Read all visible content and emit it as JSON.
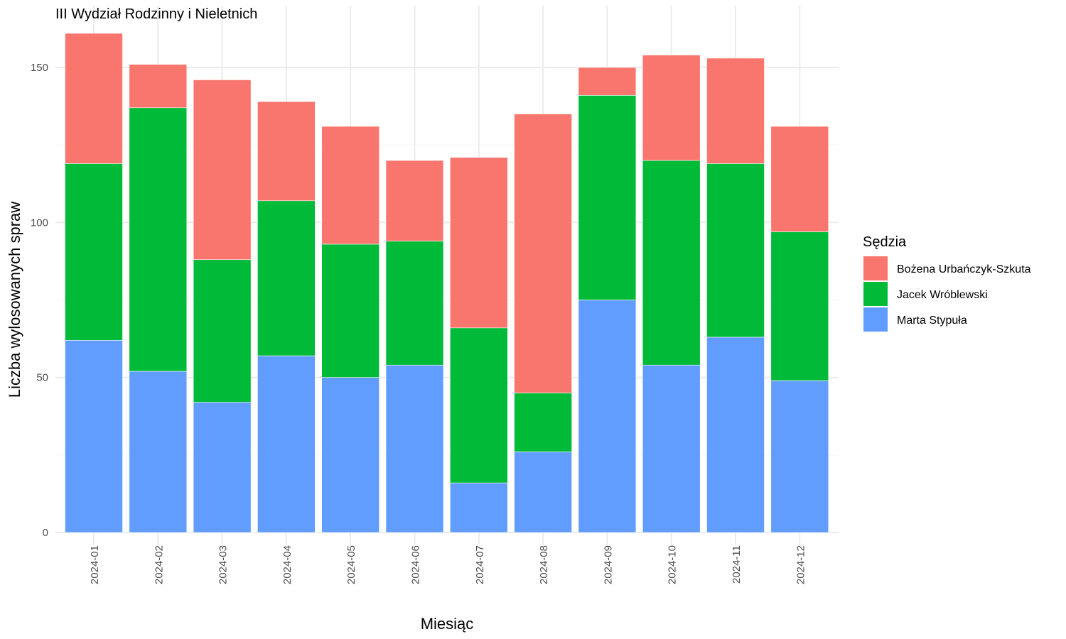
{
  "chart_data": {
    "type": "bar",
    "stacked": true,
    "title": "III Wydział Rodzinny i Nieletnich",
    "xlabel": "Miesiąc",
    "ylabel": "Liczba wylosowanych spraw",
    "categories": [
      "2024-01",
      "2024-02",
      "2024-03",
      "2024-04",
      "2024-05",
      "2024-06",
      "2024-07",
      "2024-08",
      "2024-09",
      "2024-10",
      "2024-11",
      "2024-12"
    ],
    "yticks": [
      0,
      50,
      100,
      150
    ],
    "ylim": [
      0,
      162
    ],
    "grid": true,
    "legend": {
      "title": "Sędzia",
      "position": "right"
    },
    "series": [
      {
        "name": "Bożena Urbańczyk-Szkuta",
        "color": "#F8766D",
        "values": [
          42,
          14,
          58,
          32,
          38,
          26,
          55,
          90,
          9,
          34,
          34,
          34
        ]
      },
      {
        "name": "Jacek Wróblewski",
        "color": "#00BA38",
        "values": [
          57,
          85,
          46,
          50,
          43,
          40,
          50,
          19,
          66,
          66,
          56,
          48
        ]
      },
      {
        "name": "Marta Stypuła",
        "color": "#619CFF",
        "values": [
          62,
          52,
          42,
          57,
          50,
          54,
          16,
          26,
          75,
          54,
          63,
          49
        ]
      }
    ]
  }
}
